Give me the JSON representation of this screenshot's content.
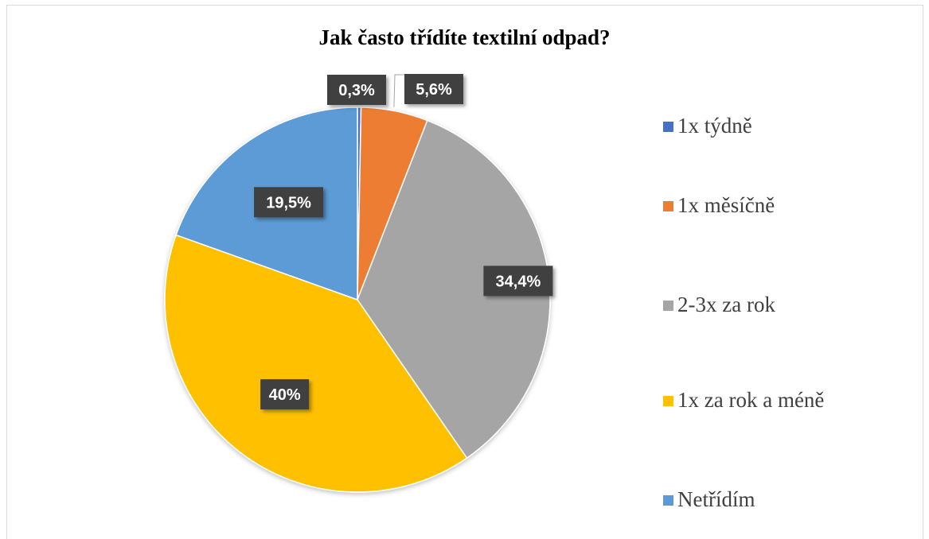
{
  "chart_data": {
    "type": "pie",
    "title": "Jak často třídíte textilní odpad?",
    "categories": [
      "1x týdně",
      "1x měsíčně",
      "2-3x za rok",
      "1x za rok a méně",
      "Netřídím"
    ],
    "values": [
      0.3,
      5.6,
      34.4,
      40,
      19.5
    ],
    "data_labels": [
      "0,3%",
      "5,6%",
      "34,4%",
      "40%",
      "19,5%"
    ],
    "colors": [
      "#4472C4",
      "#ED7D31",
      "#A5A5A5",
      "#FFC000",
      "#5B9BD5"
    ],
    "legend_position": "right",
    "start_angle": "12 o'clock, clockwise"
  }
}
